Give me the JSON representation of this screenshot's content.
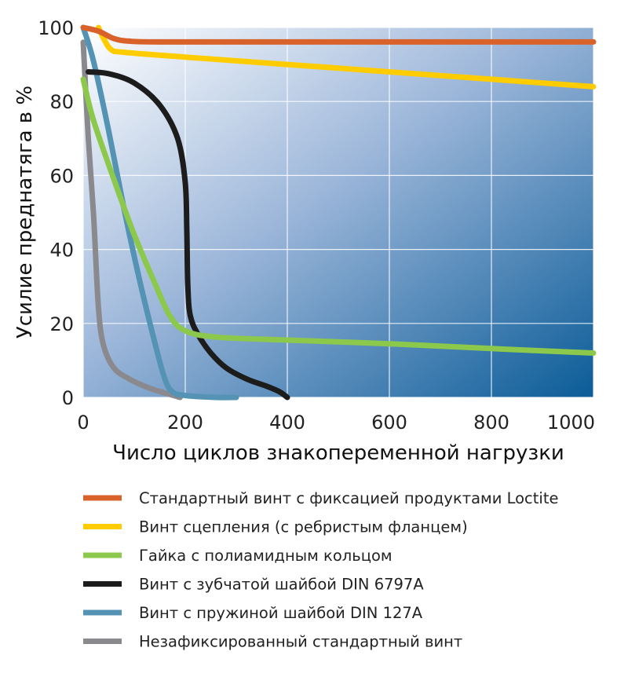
{
  "chart_data": {
    "type": "line",
    "xlabel": "Число циклов знакопеременной нагрузки",
    "ylabel": "Усилие преднатяга в %",
    "xlim": [
      0,
      1000
    ],
    "ylim": [
      0,
      100
    ],
    "xticks": [
      0,
      200,
      400,
      600,
      800,
      1000
    ],
    "yticks": [
      0,
      20,
      40,
      60,
      80,
      100
    ],
    "grid": true,
    "legend_position": "below",
    "series": [
      {
        "name": "Стандартный винт с фиксацией продуктами Loctite",
        "color": "#d9622b",
        "points": [
          [
            0,
            100
          ],
          [
            30,
            99
          ],
          [
            60,
            97
          ],
          [
            90,
            96.3
          ],
          [
            150,
            96.1
          ],
          [
            400,
            96.1
          ],
          [
            700,
            96.1
          ],
          [
            1000,
            96.1
          ]
        ]
      },
      {
        "name": "Винт сцепления (с ребристым фланцем)",
        "color": "#ffcc00",
        "points": [
          [
            30,
            100
          ],
          [
            40,
            97
          ],
          [
            55,
            94
          ],
          [
            80,
            93.3
          ],
          [
            200,
            92
          ],
          [
            400,
            90
          ],
          [
            600,
            88
          ],
          [
            800,
            86
          ],
          [
            1000,
            84
          ]
        ]
      },
      {
        "name": "Гайка с полиамидным кольцом",
        "color": "#8cc84b",
        "points": [
          [
            0,
            86
          ],
          [
            20,
            75
          ],
          [
            60,
            59
          ],
          [
            100,
            44
          ],
          [
            140,
            31
          ],
          [
            170,
            22
          ],
          [
            200,
            18
          ],
          [
            260,
            16.3
          ],
          [
            400,
            15.5
          ],
          [
            600,
            14.5
          ],
          [
            800,
            13.2
          ],
          [
            1000,
            12
          ]
        ]
      },
      {
        "name": "Винт с зубчатой шайбой DIN 6797A",
        "color": "#1c1c1c",
        "points": [
          [
            10,
            88
          ],
          [
            50,
            87.5
          ],
          [
            100,
            85
          ],
          [
            150,
            79
          ],
          [
            185,
            70
          ],
          [
            200,
            58
          ],
          [
            203,
            45
          ],
          [
            205,
            30
          ],
          [
            210,
            22
          ],
          [
            225,
            17
          ],
          [
            250,
            12
          ],
          [
            280,
            8
          ],
          [
            320,
            5
          ],
          [
            360,
            3
          ],
          [
            385,
            1.5
          ],
          [
            400,
            0
          ]
        ]
      },
      {
        "name": "Винт с пружиной шайбой DIN 127A",
        "color": "#5493b3",
        "points": [
          [
            0,
            100
          ],
          [
            20,
            91
          ],
          [
            50,
            72
          ],
          [
            80,
            51
          ],
          [
            110,
            32
          ],
          [
            140,
            15
          ],
          [
            160,
            5
          ],
          [
            175,
            1.5
          ],
          [
            200,
            0.5
          ],
          [
            260,
            0
          ],
          [
            300,
            0
          ]
        ]
      },
      {
        "name": "Незафиксированный стандартный винт",
        "color": "#8a8a8e",
        "points": [
          [
            0,
            96
          ],
          [
            10,
            70
          ],
          [
            20,
            50
          ],
          [
            30,
            24
          ],
          [
            40,
            14
          ],
          [
            60,
            8
          ],
          [
            90,
            5
          ],
          [
            130,
            2.5
          ],
          [
            170,
            0.8
          ],
          [
            190,
            0
          ]
        ]
      }
    ]
  }
}
